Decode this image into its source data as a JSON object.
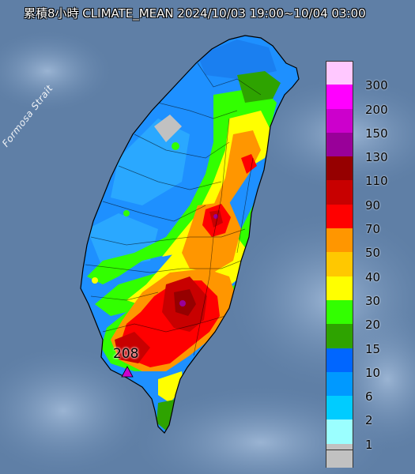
{
  "title": "累積8小時 CLIMATE_MEAN 2024/10/03 19:00~10/04 03:00",
  "sea_label": "Formosa Strait",
  "max_station": {
    "value": "208"
  },
  "legend": {
    "unit_levels": [
      {
        "label": "300",
        "color": "#ffc8ff"
      },
      {
        "label": "200",
        "color": "#ff00ff"
      },
      {
        "label": "150",
        "color": "#cc00cc"
      },
      {
        "label": "130",
        "color": "#990099"
      },
      {
        "label": "110",
        "color": "#960000"
      },
      {
        "label": "90",
        "color": "#c80000"
      },
      {
        "label": "70",
        "color": "#ff0000"
      },
      {
        "label": "50",
        "color": "#ff9600"
      },
      {
        "label": "40",
        "color": "#ffc800"
      },
      {
        "label": "30",
        "color": "#ffff00"
      },
      {
        "label": "20",
        "color": "#32ff00"
      },
      {
        "label": "15",
        "color": "#2ea300"
      },
      {
        "label": "10",
        "color": "#0066ff"
      },
      {
        "label": "6",
        "color": "#0099ff"
      },
      {
        "label": "2",
        "color": "#00ccff"
      },
      {
        "label": "1",
        "color": "#9bffff"
      },
      {
        "label": "",
        "color": "#c1c1c1"
      }
    ],
    "bottom_label": "1"
  },
  "colors": {
    "sea": "#5f7fa6",
    "land_outline": "#000000"
  }
}
